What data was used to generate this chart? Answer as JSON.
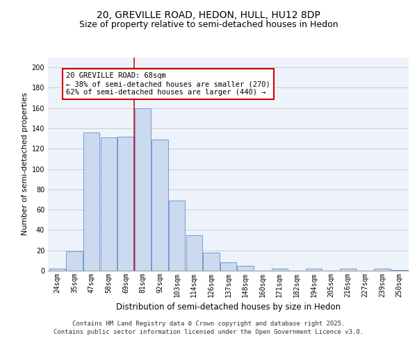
{
  "title": "20, GREVILLE ROAD, HEDON, HULL, HU12 8DP",
  "subtitle": "Size of property relative to semi-detached houses in Hedon",
  "xlabel": "Distribution of semi-detached houses by size in Hedon",
  "ylabel": "Number of semi-detached properties",
  "categories": [
    "24sqm",
    "35sqm",
    "47sqm",
    "58sqm",
    "69sqm",
    "81sqm",
    "92sqm",
    "103sqm",
    "114sqm",
    "126sqm",
    "137sqm",
    "148sqm",
    "160sqm",
    "171sqm",
    "182sqm",
    "194sqm",
    "205sqm",
    "216sqm",
    "227sqm",
    "239sqm",
    "250sqm"
  ],
  "values": [
    2,
    19,
    136,
    131,
    132,
    160,
    129,
    69,
    35,
    18,
    8,
    5,
    0,
    2,
    0,
    2,
    0,
    2,
    0,
    2,
    1
  ],
  "bar_color": "#ccdaf0",
  "bar_edge_color": "#6090c8",
  "property_line_x": 4.5,
  "annotation_text": "20 GREVILLE ROAD: 68sqm\n← 38% of semi-detached houses are smaller (270)\n62% of semi-detached houses are larger (440) →",
  "annotation_box_color": "#ffffff",
  "annotation_box_edge": "#cc0000",
  "vline_color": "#cc0000",
  "ylim": [
    0,
    210
  ],
  "yticks": [
    0,
    20,
    40,
    60,
    80,
    100,
    120,
    140,
    160,
    180,
    200
  ],
  "grid_color": "#cccccc",
  "background_color": "#eef2fb",
  "footer_text": "Contains HM Land Registry data © Crown copyright and database right 2025.\nContains public sector information licensed under the Open Government Licence v3.0.",
  "title_fontsize": 10,
  "subtitle_fontsize": 9,
  "xlabel_fontsize": 8.5,
  "ylabel_fontsize": 8,
  "tick_fontsize": 7,
  "annot_fontsize": 7.5,
  "footer_fontsize": 6.5
}
